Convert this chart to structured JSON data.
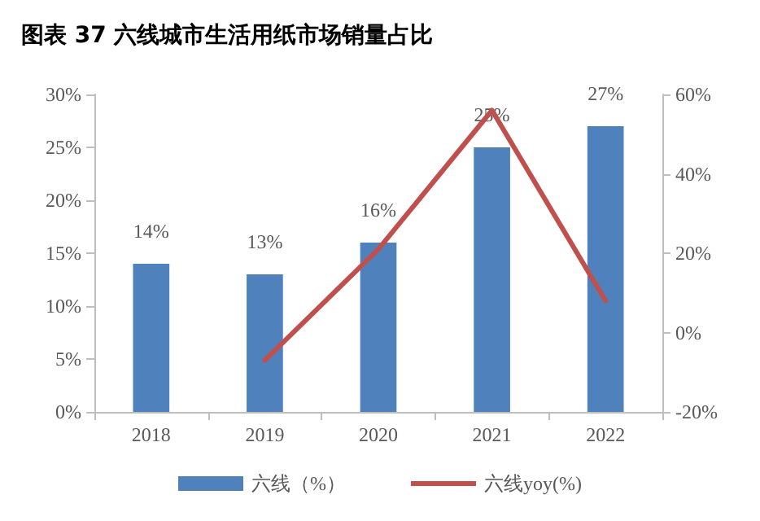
{
  "chart_data": {
    "type": "bar",
    "title": "图表 37 六线城市生活用纸市场销量占比",
    "categories": [
      "2018",
      "2019",
      "2020",
      "2021",
      "2022"
    ],
    "series": [
      {
        "name": "六线（%）",
        "color": "#4f81bd",
        "values": [
          14,
          13,
          16,
          25,
          27
        ],
        "value_labels": [
          "14%",
          "13%",
          "16%",
          "25%",
          "27%"
        ]
      },
      {
        "name": "六线yoy(%)",
        "type": "line",
        "axis": "y2",
        "color": "#c0504d",
        "values": [
          null,
          -7,
          21,
          56,
          8
        ],
        "marker": "none"
      }
    ],
    "ylim": [
      0,
      30
    ],
    "yticks": [
      {
        "value": 0,
        "label": "0%"
      },
      {
        "value": 5,
        "label": "5%"
      },
      {
        "value": 10,
        "label": "10%"
      },
      {
        "value": 15,
        "label": "15%"
      },
      {
        "value": 20,
        "label": "20%"
      },
      {
        "value": 25,
        "label": "25%"
      },
      {
        "value": 30,
        "label": "30%"
      }
    ],
    "y2lim": [
      -20,
      60
    ],
    "y2ticks": [
      {
        "value": -20,
        "label": "-20%"
      },
      {
        "value": 0,
        "label": "0%"
      },
      {
        "value": 20,
        "label": "20%"
      },
      {
        "value": 40,
        "label": "40%"
      },
      {
        "value": 60,
        "label": "60%"
      }
    ],
    "grid": false,
    "legend": "bottom"
  }
}
